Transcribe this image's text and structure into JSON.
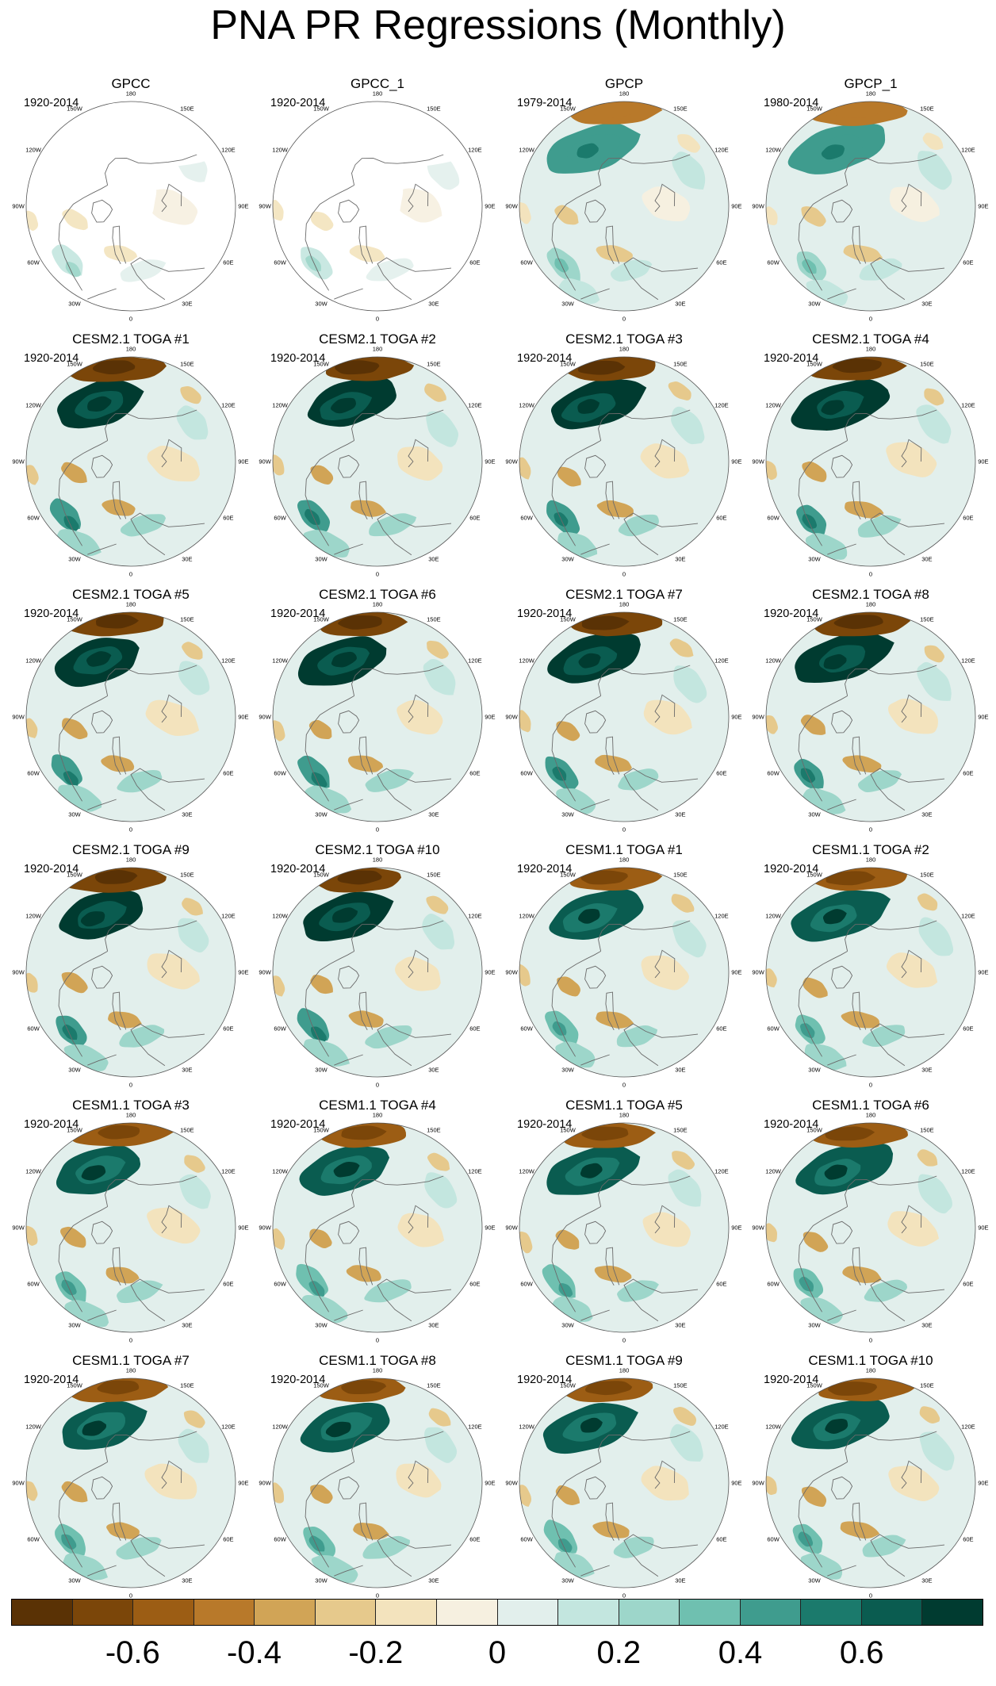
{
  "figure": {
    "title": "PNA PR Regressions (Monthly)"
  },
  "longitude_labels": [
    "180",
    "150E",
    "120E",
    "90E",
    "60E",
    "30E",
    "0",
    "30W",
    "60W",
    "90W",
    "120W",
    "150W"
  ],
  "panels": [
    {
      "title": "GPCC",
      "period": "1920-2014",
      "masked": true,
      "intensity": 0.45
    },
    {
      "title": "GPCC_1",
      "period": "1920-2014",
      "masked": true,
      "intensity": 0.45
    },
    {
      "title": "GPCP",
      "period": "1979-2014",
      "masked": false,
      "intensity": 0.65
    },
    {
      "title": "GPCP_1",
      "period": "1980-2014",
      "masked": false,
      "intensity": 0.65
    },
    {
      "title": "CESM2.1 TOGA #1",
      "period": "1920-2014",
      "masked": false,
      "intensity": 1.0
    },
    {
      "title": "CESM2.1 TOGA #2",
      "period": "1920-2014",
      "masked": false,
      "intensity": 1.0
    },
    {
      "title": "CESM2.1 TOGA #3",
      "period": "1920-2014",
      "masked": false,
      "intensity": 1.0
    },
    {
      "title": "CESM2.1 TOGA #4",
      "period": "1920-2014",
      "masked": false,
      "intensity": 1.0
    },
    {
      "title": "CESM2.1 TOGA #5",
      "period": "1920-2014",
      "masked": false,
      "intensity": 1.0
    },
    {
      "title": "CESM2.1 TOGA #6",
      "period": "1920-2014",
      "masked": false,
      "intensity": 1.0
    },
    {
      "title": "CESM2.1 TOGA #7",
      "period": "1920-2014",
      "masked": false,
      "intensity": 1.0
    },
    {
      "title": "CESM2.1 TOGA #8",
      "period": "1920-2014",
      "masked": false,
      "intensity": 1.0
    },
    {
      "title": "CESM2.1 TOGA #9",
      "period": "1920-2014",
      "masked": false,
      "intensity": 1.0
    },
    {
      "title": "CESM2.1 TOGA #10",
      "period": "1920-2014",
      "masked": false,
      "intensity": 1.0
    },
    {
      "title": "CESM1.1 TOGA #1",
      "period": "1920-2014",
      "masked": false,
      "intensity": 0.95
    },
    {
      "title": "CESM1.1 TOGA #2",
      "period": "1920-2014",
      "masked": false,
      "intensity": 0.95
    },
    {
      "title": "CESM1.1 TOGA #3",
      "period": "1920-2014",
      "masked": false,
      "intensity": 0.95
    },
    {
      "title": "CESM1.1 TOGA #4",
      "period": "1920-2014",
      "masked": false,
      "intensity": 0.95
    },
    {
      "title": "CESM1.1 TOGA #5",
      "period": "1920-2014",
      "masked": false,
      "intensity": 0.95
    },
    {
      "title": "CESM1.1 TOGA #6",
      "period": "1920-2014",
      "masked": false,
      "intensity": 0.95
    },
    {
      "title": "CESM1.1 TOGA #7",
      "period": "1920-2014",
      "masked": false,
      "intensity": 0.95
    },
    {
      "title": "CESM1.1 TOGA #8",
      "period": "1920-2014",
      "masked": false,
      "intensity": 0.95
    },
    {
      "title": "CESM1.1 TOGA #9",
      "period": "1920-2014",
      "masked": false,
      "intensity": 0.95
    },
    {
      "title": "CESM1.1 TOGA #10",
      "period": "1920-2014",
      "masked": false,
      "intensity": 0.95
    }
  ],
  "colorbar": {
    "colors": [
      "#5a3205",
      "#7b4609",
      "#9c5d14",
      "#b8792a",
      "#d1a456",
      "#e6c98c",
      "#f3e3bd",
      "#f6f0e0",
      "#e2efec",
      "#c3e6df",
      "#9dd6ca",
      "#6fc0b0",
      "#3f9c8e",
      "#1b7a6c",
      "#0a5c50",
      "#003b30"
    ],
    "labels": [
      {
        "text": "-0.6",
        "value": -0.6
      },
      {
        "text": "-0.4",
        "value": -0.4
      },
      {
        "text": "-0.2",
        "value": -0.2
      },
      {
        "text": "0",
        "value": 0
      },
      {
        "text": "0.2",
        "value": 0.2
      },
      {
        "text": "0.4",
        "value": 0.4
      },
      {
        "text": "0.6",
        "value": 0.6
      }
    ],
    "min": -0.8,
    "max": 0.8
  }
}
